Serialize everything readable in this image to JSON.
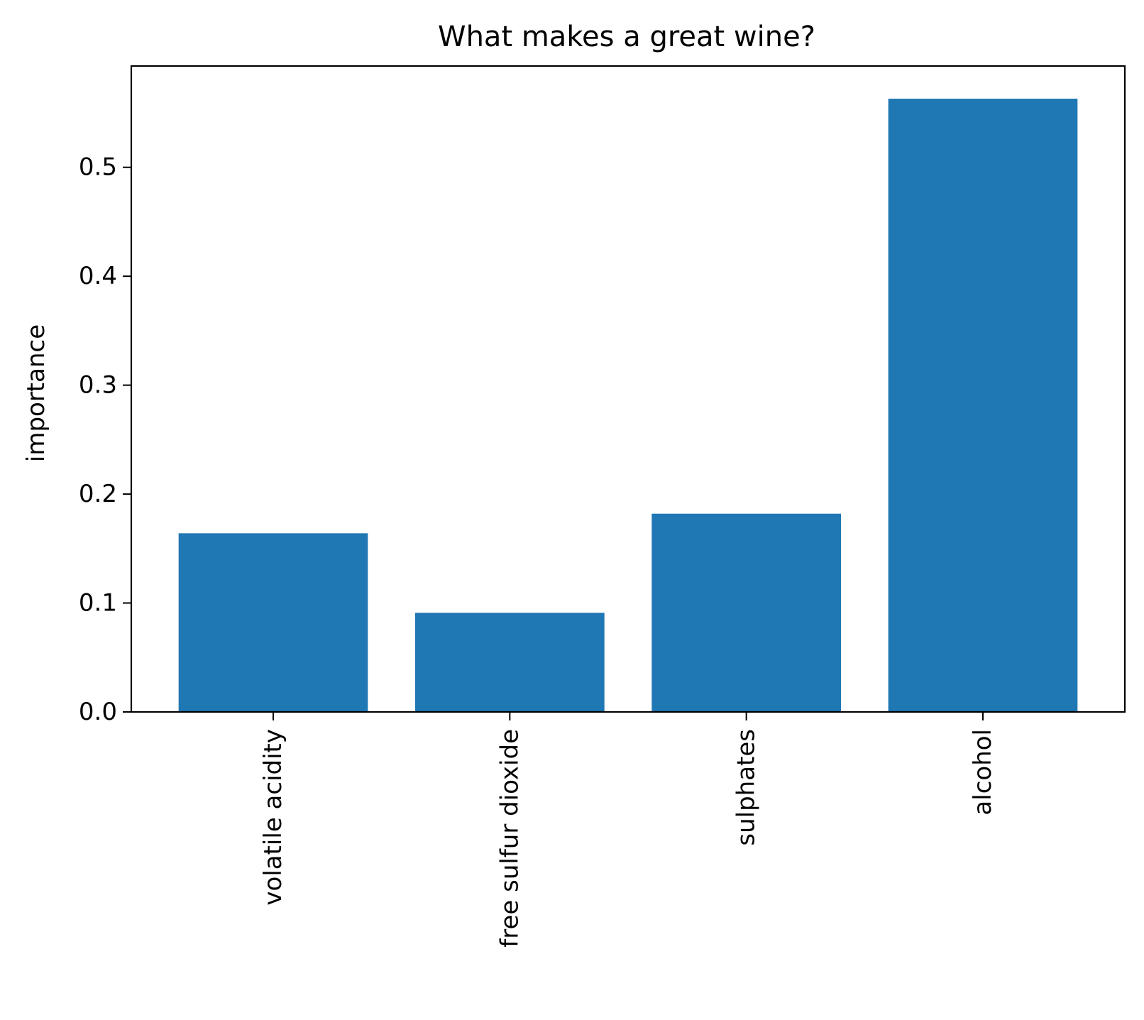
{
  "chart_data": {
    "type": "bar",
    "title": "What makes a great wine?",
    "xlabel": "",
    "ylabel": "importance",
    "categories": [
      "volatile acidity",
      "free sulfur dioxide",
      "sulphates",
      "alcohol"
    ],
    "values": [
      0.164,
      0.091,
      0.182,
      0.563
    ],
    "ylim": [
      0,
      0.593
    ],
    "yticks": [
      0.0,
      0.1,
      0.2,
      0.3,
      0.4,
      0.5
    ],
    "ytick_labels": [
      "0.0",
      "0.1",
      "0.2",
      "0.3",
      "0.4",
      "0.5"
    ],
    "bar_color": "#1f77b4",
    "xtick_rotation": "vertical",
    "grid": false,
    "legend": false
  }
}
